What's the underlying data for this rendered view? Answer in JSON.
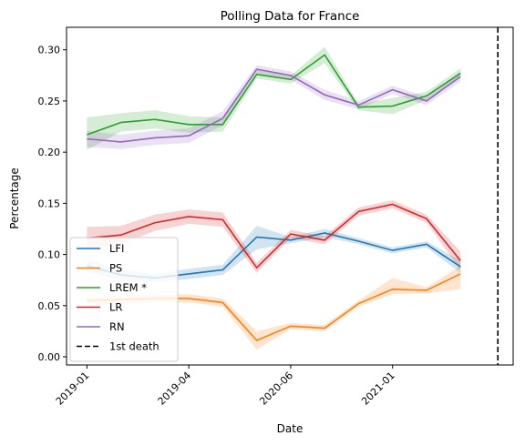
{
  "chart_data": {
    "type": "line",
    "title": "Polling Data for France",
    "xlabel": "Date",
    "ylabel": "Percentage",
    "grid": false,
    "legend_placement": "lower-left",
    "x": [
      0,
      1,
      2,
      3,
      4,
      5,
      6,
      7,
      8,
      9,
      10,
      11
    ],
    "x_ticks": [
      {
        "at": 0,
        "label": "2019-01"
      },
      {
        "at": 3,
        "label": "2019-04"
      },
      {
        "at": 6,
        "label": "2020-06"
      },
      {
        "at": 9,
        "label": "2021-01"
      }
    ],
    "xlim": [
      -0.6,
      12.55
    ],
    "ylim": [
      -0.008,
      0.322
    ],
    "y_ticks": [
      {
        "value": 0.0,
        "label": "0.00"
      },
      {
        "value": 0.05,
        "label": "0.05"
      },
      {
        "value": 0.1,
        "label": "0.10"
      },
      {
        "value": 0.15,
        "label": "0.15"
      },
      {
        "value": 0.2,
        "label": "0.20"
      },
      {
        "value": 0.25,
        "label": "0.25"
      },
      {
        "value": 0.3,
        "label": "0.30"
      }
    ],
    "series": [
      {
        "name": "LFI",
        "color": "#1f77b4",
        "values": [
          0.089,
          0.08,
          0.077,
          0.081,
          0.085,
          0.117,
          0.114,
          0.121,
          0.113,
          0.104,
          0.11,
          0.088
        ],
        "lower": [
          0.083,
          0.075,
          0.073,
          0.076,
          0.08,
          0.105,
          0.111,
          0.117,
          0.11,
          0.101,
          0.107,
          0.082
        ],
        "upper": [
          0.095,
          0.085,
          0.081,
          0.086,
          0.09,
          0.128,
          0.117,
          0.125,
          0.116,
          0.107,
          0.113,
          0.094
        ]
      },
      {
        "name": "PS",
        "color": "#ff7f0e",
        "values": [
          0.055,
          0.056,
          0.057,
          0.057,
          0.053,
          0.016,
          0.03,
          0.028,
          0.052,
          0.066,
          0.065,
          0.081
        ],
        "lower": [
          0.051,
          0.052,
          0.053,
          0.053,
          0.049,
          0.007,
          0.027,
          0.025,
          0.049,
          0.061,
          0.062,
          0.066
        ],
        "upper": [
          0.059,
          0.06,
          0.061,
          0.061,
          0.057,
          0.025,
          0.033,
          0.031,
          0.055,
          0.077,
          0.068,
          0.089
        ]
      },
      {
        "name": "LREM *",
        "color": "#2ca02c",
        "values": [
          0.217,
          0.229,
          0.232,
          0.227,
          0.227,
          0.276,
          0.271,
          0.295,
          0.244,
          0.245,
          0.255,
          0.277
        ],
        "lower": [
          0.202,
          0.22,
          0.223,
          0.219,
          0.22,
          0.272,
          0.267,
          0.287,
          0.241,
          0.237,
          0.251,
          0.272
        ],
        "upper": [
          0.234,
          0.238,
          0.241,
          0.235,
          0.234,
          0.28,
          0.275,
          0.303,
          0.247,
          0.253,
          0.259,
          0.282
        ]
      },
      {
        "name": "LR",
        "color": "#d62728",
        "values": [
          0.116,
          0.119,
          0.131,
          0.137,
          0.134,
          0.087,
          0.12,
          0.114,
          0.142,
          0.149,
          0.135,
          0.094
        ],
        "lower": [
          0.105,
          0.11,
          0.123,
          0.13,
          0.127,
          0.082,
          0.116,
          0.11,
          0.138,
          0.145,
          0.131,
          0.085
        ],
        "upper": [
          0.127,
          0.128,
          0.139,
          0.144,
          0.141,
          0.092,
          0.124,
          0.118,
          0.146,
          0.153,
          0.139,
          0.103
        ]
      },
      {
        "name": "RN",
        "color": "#9467bd",
        "values": [
          0.213,
          0.21,
          0.214,
          0.216,
          0.233,
          0.281,
          0.275,
          0.256,
          0.246,
          0.261,
          0.25,
          0.274
        ],
        "lower": [
          0.205,
          0.203,
          0.207,
          0.209,
          0.226,
          0.277,
          0.271,
          0.251,
          0.242,
          0.257,
          0.246,
          0.269
        ],
        "upper": [
          0.221,
          0.217,
          0.221,
          0.223,
          0.24,
          0.285,
          0.279,
          0.261,
          0.25,
          0.265,
          0.254,
          0.279
        ]
      }
    ],
    "vlines": [
      {
        "name": "1st death",
        "x": 12.1,
        "color": "#000000",
        "style": "dashed"
      }
    ]
  }
}
